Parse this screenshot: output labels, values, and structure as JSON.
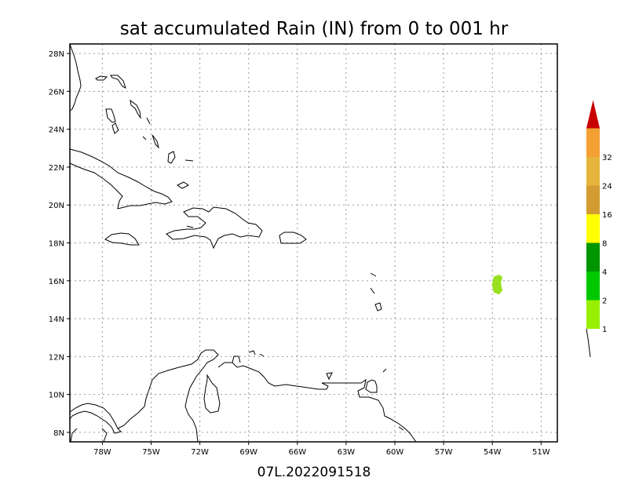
{
  "title": "sat accumulated Rain (IN) from 0 to 001 hr",
  "footer": "07L.2022091518",
  "map": {
    "lon_range": [
      -80,
      -50
    ],
    "lat_range": [
      7.5,
      28.5
    ],
    "lon_ticks": [
      {
        "value": -78,
        "label": "78W"
      },
      {
        "value": -75,
        "label": "75W"
      },
      {
        "value": -72,
        "label": "72W"
      },
      {
        "value": -69,
        "label": "69W"
      },
      {
        "value": -66,
        "label": "66W"
      },
      {
        "value": -63,
        "label": "63W"
      },
      {
        "value": -60,
        "label": "60W"
      },
      {
        "value": -57,
        "label": "57W"
      },
      {
        "value": -54,
        "label": "54W"
      },
      {
        "value": -51,
        "label": "51W"
      }
    ],
    "lat_ticks": [
      {
        "value": 8,
        "label": "8N"
      },
      {
        "value": 10,
        "label": "10N"
      },
      {
        "value": 12,
        "label": "12N"
      },
      {
        "value": 14,
        "label": "14N"
      },
      {
        "value": 16,
        "label": "16N"
      },
      {
        "value": 18,
        "label": "18N"
      },
      {
        "value": 20,
        "label": "20N"
      },
      {
        "value": 22,
        "label": "22N"
      },
      {
        "value": 24,
        "label": "24N"
      },
      {
        "value": 26,
        "label": "26N"
      },
      {
        "value": 28,
        "label": "28N"
      }
    ],
    "gridlines": true,
    "rain_patch": {
      "color": "#98e020",
      "points": [
        [
          -53.9,
          16.2
        ],
        [
          -53.6,
          16.3
        ],
        [
          -53.4,
          16.2
        ],
        [
          -53.5,
          15.9
        ],
        [
          -53.4,
          15.5
        ],
        [
          -53.6,
          15.3
        ],
        [
          -53.9,
          15.4
        ],
        [
          -54.0,
          15.8
        ]
      ]
    }
  },
  "colorbar": {
    "levels": [
      {
        "label": "1",
        "color": "#98f000"
      },
      {
        "label": "2",
        "color": "#00c800"
      },
      {
        "label": "4",
        "color": "#009600"
      },
      {
        "label": "8",
        "color": "#ffff00"
      },
      {
        "label": "16",
        "color": "#d29c32"
      },
      {
        "label": "24",
        "color": "#e6b43c"
      },
      {
        "label": "32",
        "color": "#f4a035"
      }
    ],
    "over_color": "#c80000",
    "under_color": "#ffffff"
  }
}
